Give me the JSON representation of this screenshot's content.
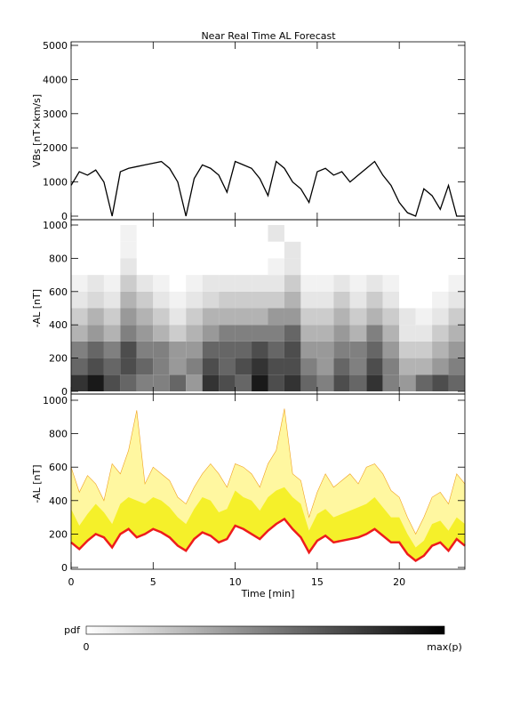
{
  "chart_data": [
    {
      "type": "line",
      "title": "Near Real Time AL Forecast",
      "ylabel": "VBs [nT×km/s]",
      "xlim": [
        0,
        24
      ],
      "xticks": [
        0,
        5,
        10,
        15,
        20
      ],
      "ylim": [
        0,
        5000
      ],
      "yticks": [
        0,
        1000,
        2000,
        3000,
        4000,
        5000
      ],
      "x": [
        0,
        0.5,
        1,
        1.5,
        2,
        2.5,
        3,
        3.5,
        4,
        4.5,
        5,
        5.5,
        6,
        6.5,
        7,
        7.5,
        8,
        8.5,
        9,
        9.5,
        10,
        10.5,
        11,
        11.5,
        12,
        12.5,
        13,
        13.5,
        14,
        14.5,
        15,
        15.5,
        16,
        16.5,
        17,
        17.5,
        18,
        18.5,
        19,
        19.5,
        20,
        20.5,
        21,
        21.5,
        22,
        22.5,
        23,
        23.5,
        24
      ],
      "series": [
        {
          "color": "#000000",
          "values": [
            900,
            1300,
            1200,
            1350,
            1000,
            0,
            1300,
            1400,
            1450,
            1500,
            1550,
            1600,
            1400,
            1000,
            0,
            1100,
            1500,
            1400,
            1200,
            700,
            1600,
            1500,
            1400,
            1100,
            600,
            1600,
            1400,
            1000,
            800,
            400,
            1300,
            1400,
            1200,
            1300,
            1000,
            1200,
            1400,
            1600,
            1200,
            900,
            400,
            100,
            0,
            800,
            600,
            200,
            900,
            0,
            0
          ]
        }
      ]
    },
    {
      "type": "heatmap",
      "ylabel": "-AL [nT]",
      "xlim": [
        0,
        24
      ],
      "xticks": [
        0,
        5,
        10,
        15,
        20
      ],
      "ylim": [
        0,
        1000
      ],
      "yticks": [
        0,
        200,
        400,
        600,
        800,
        1000
      ],
      "xbins": [
        0,
        1,
        2,
        3,
        4,
        5,
        6,
        7,
        8,
        9,
        10,
        11,
        12,
        13,
        14,
        15,
        16,
        17,
        18,
        19,
        20,
        21,
        22,
        23,
        24
      ],
      "ybins": [
        0,
        100,
        200,
        300,
        400,
        500,
        600,
        700,
        800,
        900,
        1000
      ],
      "z": [
        [
          0.8,
          0.9,
          0.7,
          0.6,
          0.5,
          0.5,
          0.6,
          0.4,
          0.8,
          0.7,
          0.6,
          0.9,
          0.7,
          0.8,
          0.6,
          0.5,
          0.7,
          0.6,
          0.8,
          0.5,
          0.4,
          0.6,
          0.7,
          0.6
        ],
        [
          0.6,
          0.7,
          0.6,
          0.7,
          0.6,
          0.5,
          0.4,
          0.5,
          0.7,
          0.6,
          0.7,
          0.8,
          0.7,
          0.7,
          0.5,
          0.4,
          0.6,
          0.5,
          0.7,
          0.5,
          0.3,
          0.3,
          0.4,
          0.5
        ],
        [
          0.5,
          0.6,
          0.5,
          0.7,
          0.5,
          0.5,
          0.4,
          0.4,
          0.6,
          0.6,
          0.6,
          0.7,
          0.6,
          0.7,
          0.4,
          0.4,
          0.5,
          0.5,
          0.6,
          0.4,
          0.2,
          0.2,
          0.3,
          0.4
        ],
        [
          0.3,
          0.4,
          0.3,
          0.5,
          0.4,
          0.3,
          0.2,
          0.3,
          0.4,
          0.5,
          0.5,
          0.5,
          0.5,
          0.6,
          0.3,
          0.3,
          0.4,
          0.3,
          0.5,
          0.3,
          0.1,
          0.1,
          0.2,
          0.3
        ],
        [
          0.2,
          0.3,
          0.2,
          0.4,
          0.3,
          0.2,
          0.1,
          0.2,
          0.3,
          0.3,
          0.3,
          0.3,
          0.4,
          0.4,
          0.2,
          0.2,
          0.3,
          0.2,
          0.3,
          0.2,
          0.1,
          0.05,
          0.1,
          0.2
        ],
        [
          0.1,
          0.15,
          0.1,
          0.3,
          0.2,
          0.1,
          0.05,
          0.1,
          0.15,
          0.2,
          0.2,
          0.2,
          0.2,
          0.3,
          0.1,
          0.1,
          0.2,
          0.1,
          0.2,
          0.1,
          0,
          0,
          0.05,
          0.1
        ],
        [
          0.05,
          0.1,
          0.05,
          0.2,
          0.1,
          0.05,
          0,
          0.05,
          0.1,
          0.1,
          0.1,
          0.1,
          0.1,
          0.2,
          0.05,
          0.05,
          0.1,
          0.05,
          0.1,
          0.05,
          0,
          0,
          0,
          0.05
        ],
        [
          0,
          0,
          0,
          0.1,
          0,
          0,
          0,
          0,
          0,
          0,
          0,
          0,
          0.05,
          0.1,
          0,
          0,
          0,
          0,
          0,
          0,
          0,
          0,
          0,
          0
        ],
        [
          0,
          0,
          0,
          0.05,
          0,
          0,
          0,
          0,
          0,
          0,
          0,
          0,
          0,
          0.1,
          0,
          0,
          0,
          0,
          0,
          0,
          0,
          0,
          0,
          0
        ],
        [
          0,
          0,
          0,
          0.05,
          0,
          0,
          0,
          0,
          0,
          0,
          0,
          0,
          0.1,
          0,
          0,
          0,
          0,
          0,
          0,
          0,
          0,
          0,
          0,
          0
        ]
      ],
      "colorbar": {
        "label": "pdf",
        "min_label": "0",
        "max_label": "max(p)"
      }
    },
    {
      "type": "band",
      "ylabel": "-AL [nT]",
      "xlabel": "Time [min]",
      "xlim": [
        0,
        24
      ],
      "xticks": [
        0,
        5,
        10,
        15,
        20
      ],
      "ylim": [
        0,
        1000
      ],
      "yticks": [
        0,
        200,
        400,
        600,
        800,
        1000
      ],
      "x": [
        0,
        0.5,
        1,
        1.5,
        2,
        2.5,
        3,
        3.5,
        4,
        4.5,
        5,
        5.5,
        6,
        6.5,
        7,
        7.5,
        8,
        8.5,
        9,
        9.5,
        10,
        10.5,
        11,
        11.5,
        12,
        12.5,
        13,
        13.5,
        14,
        14.5,
        15,
        15.5,
        16,
        16.5,
        17,
        17.5,
        18,
        18.5,
        19,
        19.5,
        20,
        20.5,
        21,
        21.5,
        22,
        22.5,
        23,
        23.5,
        24
      ],
      "series": [
        {
          "color": "#fff7a0",
          "values": [
            600,
            450,
            550,
            500,
            400,
            620,
            560,
            700,
            940,
            500,
            600,
            560,
            520,
            420,
            380,
            480,
            560,
            620,
            560,
            480,
            620,
            600,
            560,
            480,
            620,
            700,
            950,
            560,
            520,
            300,
            450,
            560,
            480,
            520,
            560,
            500,
            600,
            620,
            560,
            460,
            420,
            300,
            200,
            300,
            420,
            450,
            380,
            560,
            500
          ]
        },
        {
          "color": "#f5f02a",
          "values": [
            350,
            250,
            320,
            380,
            330,
            260,
            380,
            420,
            400,
            380,
            420,
            400,
            360,
            300,
            260,
            350,
            420,
            400,
            330,
            350,
            460,
            420,
            400,
            340,
            420,
            460,
            480,
            420,
            380,
            220,
            320,
            350,
            300,
            320,
            340,
            360,
            380,
            420,
            360,
            300,
            300,
            200,
            120,
            160,
            260,
            280,
            220,
            300,
            260
          ]
        },
        {
          "color": "#ee1c1c",
          "values": [
            150,
            110,
            160,
            200,
            180,
            120,
            200,
            230,
            180,
            200,
            230,
            210,
            180,
            130,
            100,
            170,
            210,
            190,
            150,
            170,
            250,
            230,
            200,
            170,
            220,
            260,
            290,
            230,
            180,
            90,
            160,
            190,
            150,
            160,
            170,
            180,
            200,
            230,
            190,
            150,
            150,
            80,
            40,
            70,
            130,
            150,
            100,
            170,
            130
          ]
        }
      ]
    }
  ]
}
